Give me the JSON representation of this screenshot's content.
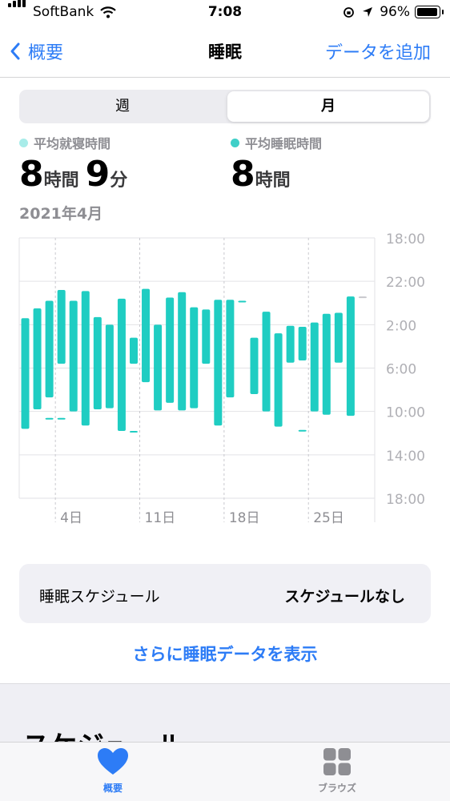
{
  "status_bar": {
    "carrier": "SoftBank",
    "time": "7:08",
    "battery": "96%"
  },
  "nav": {
    "back_label": "概要",
    "title": "睡眠",
    "action_label": "データを追加"
  },
  "segment": {
    "options": [
      "週",
      "月"
    ],
    "selected": "月"
  },
  "stats": {
    "bedtime": {
      "label": "平均就寝時間",
      "hours": "8",
      "hours_unit": "時間",
      "minutes": "9",
      "minutes_unit": "分",
      "color": "#a8ece9"
    },
    "sleep": {
      "label": "平均睡眠時間",
      "hours": "8",
      "hours_unit": "時間",
      "color": "#3fcfc8"
    }
  },
  "period": "2021年4月",
  "chart_data": {
    "type": "bar",
    "x_ticks": [
      {
        "day": 4,
        "label": "4日"
      },
      {
        "day": 11,
        "label": "11日"
      },
      {
        "day": 18,
        "label": "18日"
      },
      {
        "day": 25,
        "label": "25日"
      }
    ],
    "y_ticks": [
      "18:00",
      "22:00",
      "2:00",
      "6:00",
      "10:00",
      "14:00",
      "18:00"
    ],
    "y_range_hours": [
      18,
      42
    ],
    "series_color": "#1fcdc2",
    "current_day_color": "#c7c7cc",
    "days": [
      {
        "day": 1,
        "segments": [
          [
            1.4,
            11.6
          ]
        ]
      },
      {
        "day": 2,
        "segments": [
          [
            0.5,
            9.8
          ]
        ]
      },
      {
        "day": 3,
        "segments": [
          [
            23.8,
            8.7
          ],
          [
            10.6,
            12.8
          ]
        ]
      },
      {
        "day": 4,
        "segments": [
          [
            22.8,
            5.6
          ],
          [
            10.6,
            14.2
          ]
        ]
      },
      {
        "day": 5,
        "segments": [
          [
            23.8,
            10.0
          ]
        ]
      },
      {
        "day": 6,
        "segments": [
          [
            22.9,
            11.3
          ]
        ]
      },
      {
        "day": 7,
        "segments": [
          [
            1.3,
            9.8
          ]
        ]
      },
      {
        "day": 8,
        "segments": [
          [
            2.0,
            9.7
          ]
        ]
      },
      {
        "day": 9,
        "segments": [
          [
            23.6,
            11.8
          ]
        ]
      },
      {
        "day": 10,
        "segments": [
          [
            3.2,
            5.6
          ],
          [
            11.8,
            14.1
          ]
        ]
      },
      {
        "day": 11,
        "segments": [
          [
            22.7,
            7.3
          ]
        ]
      },
      {
        "day": 12,
        "segments": [
          [
            2.0,
            9.9
          ]
        ]
      },
      {
        "day": 13,
        "segments": [
          [
            23.5,
            9.2
          ]
        ]
      },
      {
        "day": 14,
        "segments": [
          [
            23.0,
            9.9
          ]
        ]
      },
      {
        "day": 15,
        "segments": [
          [
            0.4,
            9.7
          ]
        ]
      },
      {
        "day": 16,
        "segments": [
          [
            0.6,
            5.6
          ]
        ]
      },
      {
        "day": 17,
        "segments": [
          [
            23.7,
            11.3
          ]
        ]
      },
      {
        "day": 18,
        "segments": [
          [
            23.7,
            8.7
          ]
        ]
      },
      {
        "day": 19,
        "segments": [
          [
            23.8,
            12.5
          ]
        ]
      },
      {
        "day": 20,
        "segments": [
          [
            3.2,
            8.4
          ]
        ]
      },
      {
        "day": 21,
        "segments": [
          [
            0.8,
            10.0
          ]
        ]
      },
      {
        "day": 22,
        "segments": [
          [
            2.8,
            11.4
          ]
        ]
      },
      {
        "day": 23,
        "segments": [
          [
            2.1,
            5.5
          ]
        ]
      },
      {
        "day": 24,
        "segments": [
          [
            2.2,
            5.3
          ],
          [
            11.7,
            12.8
          ]
        ]
      },
      {
        "day": 25,
        "segments": [
          [
            1.8,
            10.0
          ]
        ]
      },
      {
        "day": 26,
        "segments": [
          [
            1.0,
            10.3
          ],
          [
            12.4,
            12.8
          ]
        ]
      },
      {
        "day": 27,
        "segments": [
          [
            0.9,
            5.5
          ]
        ]
      },
      {
        "day": 28,
        "segments": [
          [
            23.4,
            10.4
          ]
        ]
      },
      {
        "day": 29,
        "segments": [
          [
            23.4,
            16.0
          ]
        ],
        "current": true
      }
    ]
  },
  "schedule": {
    "label": "睡眠スケジュール",
    "value": "スケジュールなし"
  },
  "more_link": "さらに睡眠データを表示",
  "next_section": "スケジュール",
  "tabs": [
    {
      "label": "概要",
      "icon": "heart-icon"
    },
    {
      "label": "ブラウズ",
      "icon": "grid-icon"
    }
  ]
}
